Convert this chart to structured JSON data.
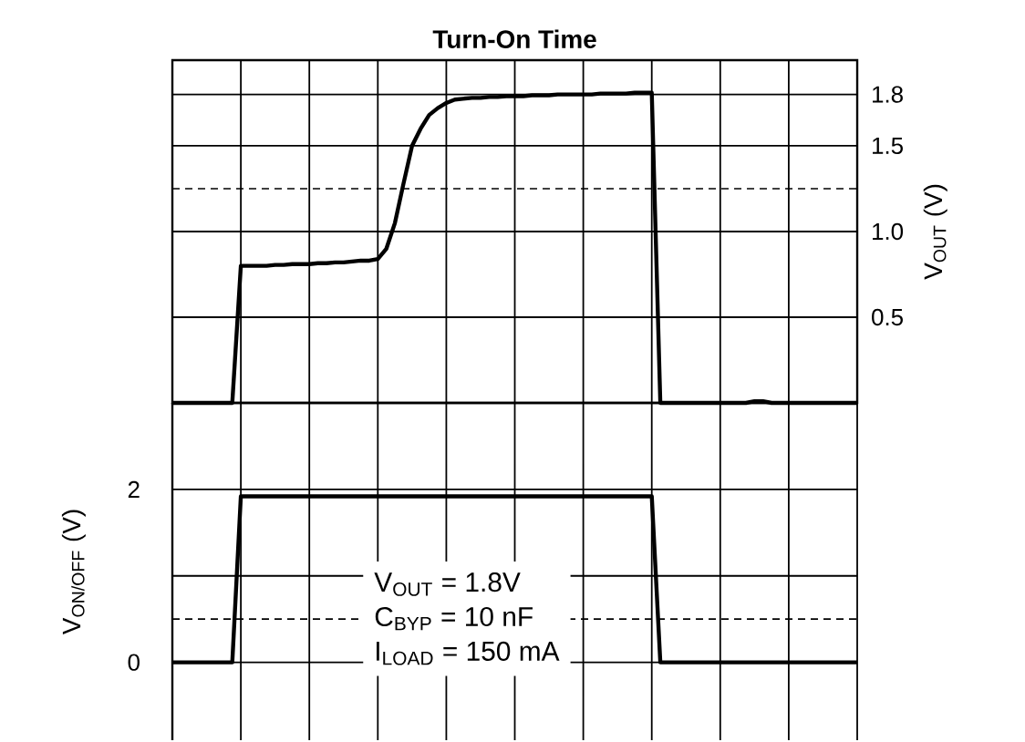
{
  "chart_data": [
    {
      "type": "line",
      "title": "Turn-On Time",
      "ylabel": "V$_{OUT}$ (V)",
      "tick_labels": "y",
      "grid": true,
      "line_style": "solid",
      "categories": [
        null,
        null,
        null,
        null,
        null,
        null,
        null,
        null,
        null,
        null,
        null,
        null,
        null,
        null,
        null,
        null,
        null,
        null,
        null,
        null,
        null,
        null,
        null,
        null,
        null,
        null,
        null,
        null,
        null,
        null,
        null,
        null,
        null,
        null,
        null,
        null,
        null,
        null,
        null,
        null,
        null,
        null,
        null,
        null,
        null,
        null,
        null,
        null,
        null,
        null,
        null,
        null,
        null,
        null,
        null,
        null,
        null,
        null,
        null,
        null,
        null,
        null,
        null,
        null,
        null,
        null,
        null,
        null,
        null,
        null,
        null,
        null,
        null,
        null,
        null,
        null,
        null,
        null,
        null,
        null,
        null
      ],
      "ylim": [
        0,
        2
      ],
      "yticks": [
        {
          "value": 0,
          "label": null
        },
        0.5,
        {
          "value": 1,
          "label": "1.0"
        },
        1.5,
        1.8,
        {
          "value": 2,
          "label": null
        }
      ],
      "ref_lines": [
        {
          "axis": "y",
          "value": 1.25,
          "line_style": "dashed",
          "color": "#000000"
        }
      ],
      "series": [
        {
          "color": "#000000",
          "values": [
            0,
            0,
            0,
            0,
            0,
            0,
            0,
            0,
            0.8,
            0.8,
            0.8,
            0.8,
            0.805,
            0.805,
            0.81,
            0.81,
            0.81,
            0.815,
            0.815,
            0.82,
            0.82,
            0.825,
            0.83,
            0.83,
            0.84,
            0.9,
            1.05,
            1.28,
            1.5,
            1.6,
            1.68,
            1.72,
            1.75,
            1.77,
            1.775,
            1.78,
            1.78,
            1.785,
            1.785,
            1.79,
            1.79,
            1.79,
            1.795,
            1.795,
            1.795,
            1.8,
            1.8,
            1.8,
            1.8,
            1.8,
            1.805,
            1.805,
            1.805,
            1.805,
            1.81,
            1.81,
            1.81,
            0,
            0,
            0,
            0,
            0,
            0,
            0,
            0,
            0,
            0,
            0,
            0.01,
            0.01,
            0,
            0,
            0,
            0,
            0,
            0,
            0,
            0,
            0,
            0,
            0
          ]
        }
      ]
    },
    {
      "type": "line",
      "ylabel": "V$_{ON/OFF}$ (V)",
      "tick_labels": "y",
      "grid": true,
      "line_style": "solid",
      "categories": [
        null,
        null,
        null,
        null,
        null,
        null,
        null,
        null,
        null,
        null,
        null,
        null,
        null,
        null,
        null,
        null,
        null,
        null,
        null,
        null,
        null,
        null,
        null,
        null,
        null,
        null,
        null,
        null,
        null,
        null,
        null,
        null,
        null,
        null,
        null,
        null,
        null,
        null,
        null,
        null,
        null,
        null,
        null,
        null,
        null,
        null,
        null,
        null,
        null,
        null,
        null,
        null,
        null,
        null,
        null,
        null,
        null,
        null,
        null,
        null,
        null,
        null,
        null,
        null,
        null,
        null,
        null,
        null,
        null,
        null,
        null,
        null,
        null,
        null,
        null,
        null,
        null,
        null,
        null,
        null,
        null
      ],
      "ylim": [
        -0.9,
        3
      ],
      "yticks": [
        0,
        {
          "value": 1,
          "label": null
        },
        2,
        {
          "value": 3,
          "label": null
        }
      ],
      "ref_lines": [
        {
          "axis": "y",
          "value": 0.5,
          "line_style": "dashed",
          "color": "#000000"
        }
      ],
      "annotations": [
        "V$_{OUT}$ = 1.8V",
        "C$_{BYP}$ = 10 nF",
        "I$_{LOAD}$ = 150 mA"
      ],
      "series": [
        {
          "color": "#000000",
          "values": [
            0,
            0,
            0,
            0,
            0,
            0,
            0,
            0,
            1.92,
            1.92,
            1.92,
            1.92,
            1.92,
            1.92,
            1.92,
            1.92,
            1.92,
            1.92,
            1.92,
            1.92,
            1.92,
            1.92,
            1.92,
            1.92,
            1.92,
            1.92,
            1.92,
            1.92,
            1.92,
            1.92,
            1.92,
            1.92,
            1.92,
            1.92,
            1.92,
            1.92,
            1.92,
            1.92,
            1.92,
            1.92,
            1.92,
            1.92,
            1.92,
            1.92,
            1.92,
            1.92,
            1.92,
            1.92,
            1.92,
            1.92,
            1.92,
            1.92,
            1.92,
            1.92,
            1.92,
            1.92,
            1.92,
            0,
            0,
            0,
            0,
            0,
            0,
            0,
            0,
            0,
            0,
            0,
            0,
            0,
            0,
            0,
            0,
            0,
            0,
            0,
            0,
            0,
            0,
            0,
            0
          ]
        }
      ]
    }
  ]
}
